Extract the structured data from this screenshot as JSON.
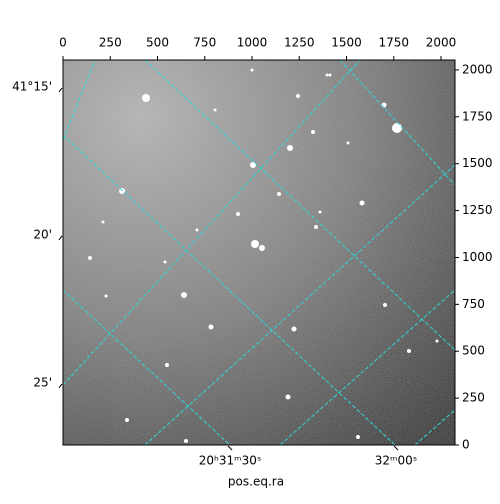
{
  "chart_data": {
    "type": "image",
    "xlabel": "pos.eq.ra",
    "xlim": [
      0,
      2074
    ],
    "ylim": [
      0,
      2053
    ],
    "xticks": [
      0,
      250,
      500,
      750,
      1000,
      1250,
      1500,
      1750,
      2000
    ],
    "yticks": [
      0,
      250,
      500,
      750,
      1000,
      1250,
      1500,
      1750,
      2000
    ],
    "ra_ticks": [
      {
        "value": 884,
        "label": "20ʰ31ᵐ30ˢ"
      },
      {
        "value": 1762,
        "label": "32ᵐ00ˢ"
      }
    ],
    "dec_ticks": [
      {
        "value": 1893,
        "label": "41°15'"
      },
      {
        "value": 1104,
        "label": "20'"
      },
      {
        "value": 315,
        "label": "25'"
      }
    ],
    "grid": true
  }
}
